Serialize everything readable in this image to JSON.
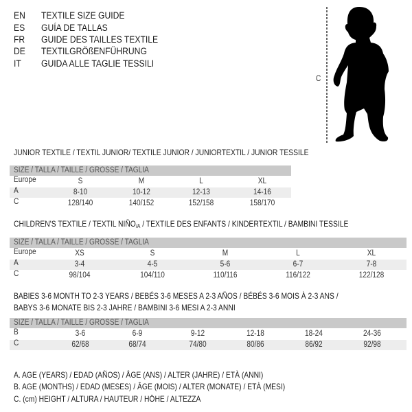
{
  "languages": [
    {
      "code": "EN",
      "label": "TEXTILE SIZE GUIDE"
    },
    {
      "code": "ES",
      "label": "GUÍA DE TALLAS"
    },
    {
      "code": "FR",
      "label": "GUIDE DES TAILLES TEXTILE"
    },
    {
      "code": "DE",
      "label": "TEXTILGRÖßENFÜHRUNG"
    },
    {
      "code": "IT",
      "label": "GUIDA ALLE TAGLIE TESSILI"
    }
  ],
  "figure": {
    "measure_label": "C",
    "icon": "baby-silhouette"
  },
  "junior": {
    "title": "JUNIOR TEXTILE / TEXTIL JUNIOR/ TEXTILE JUNIOR / JUNIORTEXTIL / JUNIOR TESSILE",
    "header": "SIZE / TALLA / TAILLE / GRÖSSE / TAGLIA",
    "rows": [
      {
        "label": "Europe",
        "values": [
          "S",
          "M",
          "L",
          "XL"
        ]
      },
      {
        "label": "A",
        "values": [
          "8-10",
          "10-12",
          "12-13",
          "14-16"
        ]
      },
      {
        "label": "C",
        "values": [
          "128/140",
          "140/152",
          "152/158",
          "158/170"
        ]
      }
    ]
  },
  "children": {
    "title_main": "CHILDREN'S TEXTILE / TEXTIL NIÑO",
    "title_sub": "/A",
    "title_rest": " / TEXTILE DES ENFANTS / KINDERTEXTIL / BAMBINI TESSILE",
    "header": "SIZE / TALLA / TAILLE / GRÖSSE / TAGLIA",
    "rows": [
      {
        "label": "Europe",
        "values": [
          "XS",
          "S",
          "M",
          "L",
          "XL"
        ]
      },
      {
        "label": "A",
        "values": [
          "3-4",
          "4-5",
          "5-6",
          "6-7",
          "7-8"
        ]
      },
      {
        "label": "C",
        "values": [
          "98/104",
          "104/110",
          "110/116",
          "116/122",
          "122/128"
        ]
      }
    ]
  },
  "babies": {
    "title_line1": "BABIES 3-6 MONTH TO 2-3 YEARS / BEBÉS 3-6 MESES A 2-3 AÑOS / BÉBÉS 3-6 MOIS À 2-3 ANS /",
    "title_line2": "BABYS 3-6 MONATE BIS 2-3 JAHRE / BAMBINI 3-6 MESI A 2-3 ANNI",
    "header": "SIZE / TALLA / TAILLE / GRÖSSE / TAGLIA",
    "rows": [
      {
        "label": "B",
        "values": [
          "3-6",
          "6-9",
          "9-12",
          "12-18",
          "18-24",
          "24-36"
        ]
      },
      {
        "label": "C",
        "values": [
          "62/68",
          "68/74",
          "74/80",
          "80/86",
          "86/92",
          "92/98"
        ]
      }
    ]
  },
  "legend": [
    "A. AGE (YEARS) / EDAD (AÑOS) / ÂGE (ANS) / ALTER (JAHRE) / ETÀ (ANNI)",
    "B. AGE (MONTHS) / EDAD (MESES) / ÂGE (MOIS) / ALTER (MONATE) / ETÀ (MESI)",
    "C. (cm) HEIGHT / ALTURA / HAUTEUR / HÖHE / ALTEZZA"
  ]
}
